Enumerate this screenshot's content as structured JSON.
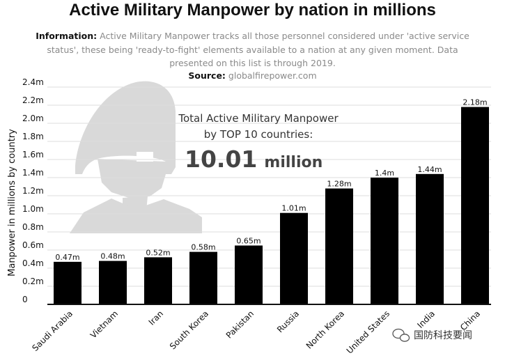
{
  "title": "Active Military Manpower by nation in millions",
  "info": {
    "label": "Information:",
    "text": "Active Military Manpower tracks all those personnel considered under 'active service status', these being 'ready-to-fight' elements available to a nation at any given moment. Data presented on this list is through 2019."
  },
  "source": {
    "label": "Source:",
    "text": "globalfirepower.com"
  },
  "total": {
    "line1": "Total Active Military Manpower",
    "line2": "by TOP 10 countries:",
    "value": "10.01",
    "unit": "million"
  },
  "watermark": {
    "text": "国防科技要闻",
    "icon": "wechat-icon"
  },
  "colors": {
    "bar": "#000000",
    "silhouette": "#d9d9d9",
    "grid": "#dddddd"
  },
  "chart_data": {
    "type": "bar",
    "title": "Active Military Manpower by nation in millions",
    "ylabel": "Manpower in millions by country",
    "xlabel": "",
    "ylim": [
      0,
      2.4
    ],
    "yticks": [
      0,
      0.2,
      0.4,
      0.6,
      0.8,
      1.0,
      1.2,
      1.4,
      1.6,
      1.8,
      2.0,
      2.2,
      2.4
    ],
    "ytick_labels": [
      "0",
      "0.2m",
      "0.4m",
      "0.6m",
      "0.8m",
      "1.0m",
      "1.2m",
      "1.4m",
      "1.6m",
      "1.8m",
      "2.0m",
      "2.2m",
      "2.4m"
    ],
    "grid": true,
    "categories": [
      "Saudi Arabia",
      "Vietnam",
      "Iran",
      "South Korea",
      "Pakistan",
      "Russia",
      "North Korea",
      "United States",
      "India",
      "China"
    ],
    "values": [
      0.47,
      0.48,
      0.52,
      0.58,
      0.65,
      1.01,
      1.28,
      1.4,
      1.44,
      2.18
    ],
    "value_labels": [
      "0.47m",
      "0.48m",
      "0.52m",
      "0.58m",
      "0.65m",
      "1.01m",
      "1.28m",
      "1.4m",
      "1.44m",
      "2.18m"
    ]
  }
}
